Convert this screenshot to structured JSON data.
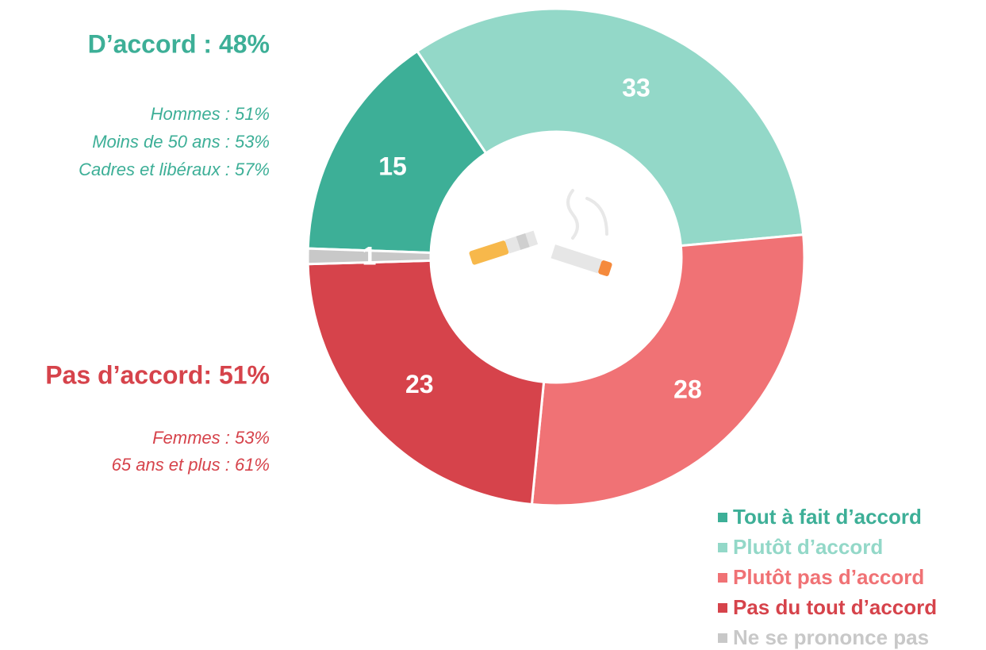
{
  "chart_data": {
    "type": "donut",
    "categories": [
      "Tout à fait d’accord",
      "Plutôt d’accord",
      "Plutôt pas d’accord",
      "Pas du tout d’accord",
      "Ne se prononce pas"
    ],
    "values": [
      15,
      33,
      28,
      23,
      1
    ],
    "colors": [
      "#3daf97",
      "#93d8c8",
      "#f07275",
      "#d6434b",
      "#c8c8c8"
    ],
    "annotations": [
      {
        "title": "D’accord : 48%",
        "lines": [
          "Hommes : 51%",
          "Moins de 50 ans : 53%",
          "Cadres et libéraux : 57%"
        ]
      },
      {
        "title": "Pas d’accord: 51%",
        "lines": [
          "Femmes : 53%",
          "65 ans et plus : 61%"
        ]
      }
    ],
    "legend": "bottom-right"
  }
}
